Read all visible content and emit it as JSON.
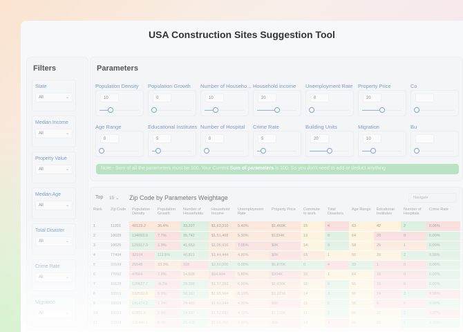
{
  "title": "USA Construction Sites Suggestion Tool",
  "filters": {
    "heading": "Filters",
    "items": [
      {
        "label": "State",
        "value": "All"
      },
      {
        "label": "Median Income",
        "value": "All"
      },
      {
        "label": "Property Value",
        "value": "All"
      },
      {
        "label": "Median Age",
        "value": "All"
      },
      {
        "label": "Total Disaster",
        "value": "All"
      },
      {
        "label": "Crime Rate",
        "value": "All"
      },
      {
        "label": "Migration",
        "value": "All"
      }
    ]
  },
  "parameters": {
    "heading": "Parameters",
    "items": [
      {
        "label": "Population Density",
        "value": "10",
        "level": 10
      },
      {
        "label": "Population Growth",
        "value": "0",
        "level": 0
      },
      {
        "label": "Number of Househo...",
        "value": "10",
        "level": 10
      },
      {
        "label": "Household income",
        "value": "20",
        "level": 20
      },
      {
        "label": "Unemployment Rate",
        "value": "0",
        "level": 0
      },
      {
        "label": "Property Price",
        "value": "20",
        "level": 20
      },
      {
        "label": "Co",
        "value": "",
        "level": 0
      },
      {
        "label": "Age Range",
        "value": "0",
        "level": 0
      },
      {
        "label": "Educational Institutes",
        "value": "5",
        "level": 5
      },
      {
        "label": "Number of Hospital",
        "value": "0",
        "level": 0
      },
      {
        "label": "Crime Rate",
        "value": "5",
        "level": 5
      },
      {
        "label": "Building Units",
        "value": "20",
        "level": 20
      },
      {
        "label": "Migration",
        "value": "10",
        "level": 10
      },
      {
        "label": "Bu",
        "value": "",
        "level": 0
      }
    ],
    "note_prefix": "Note:- Sum of all the parameters must be 100. Your Current ",
    "note_bold": "Sum of parameters",
    "note_suffix": " is 100. So you don't need to add or deduct anything"
  },
  "table": {
    "top_label": "Top",
    "top_value": "15",
    "title": "Zip Code by Parameters Weightage",
    "navigate": "Navigate",
    "columns": [
      "Rank",
      "Zip Code",
      "Population Density",
      "Population Growth",
      "Number of Households",
      "Household Income",
      "Unemployment Rate",
      "Property Price",
      "Commute to work",
      "Total Disasters",
      "Age Range",
      "Edcational Institutes",
      "Number of Hospitals",
      "Crime Rate"
    ],
    "rows": [
      [
        "1",
        "11201",
        "49123.2",
        "36.4%",
        "33,227",
        "$1,63,310",
        "5.40%",
        "$1,469K",
        "15",
        "4",
        "63",
        "42",
        "2",
        "0.06%"
      ],
      [
        "2",
        "10023",
        "134093.9",
        "7.7%",
        "35,742",
        "$1,51,468",
        "5.30%",
        "$1334K",
        "13",
        "0",
        "64",
        "20",
        "0",
        "0.00%"
      ],
      [
        "3",
        "10025",
        "129317.3",
        "2.9%",
        "41,653",
        "$1,06,916",
        "7.05%",
        "$0K",
        "14",
        "0",
        "58",
        "25",
        "1",
        "0.00%"
      ],
      [
        "4",
        "77494",
        "32104",
        "112.5%",
        "40,821",
        "$1,44,444",
        "4.80%",
        "$0K",
        "16",
        "1",
        "60",
        "39",
        "2",
        "0.00%"
      ],
      [
        "5",
        "33109",
        "25548",
        "33.3%",
        "328",
        "$2,50,000",
        "0.00%",
        "$6,875K",
        "0",
        "4",
        "33",
        "1",
        "0",
        "0.00%"
      ],
      [
        "6",
        "77092",
        "47664",
        "7.6%",
        "14,509",
        "$64,494",
        "5.80%",
        "$304K",
        "16",
        "1",
        "64",
        "15",
        "0",
        "0.00%"
      ],
      [
        "7",
        "10128",
        "120627.7",
        "-8.2%",
        "29,328",
        "$1,37,253",
        "6.00%",
        "$1,430K",
        "15",
        "0",
        "55",
        "15",
        "0",
        "0.00%"
      ],
      [
        "8",
        "10016",
        "102592.0",
        "0.9%",
        "50,167",
        "$1,65,964",
        "6.10%",
        "$1,221K",
        "14",
        "3",
        "60",
        "14",
        "3",
        "0.06%"
      ],
      [
        "9",
        "10028",
        "141474.2",
        "1.1%",
        "24,460",
        "$1,60,244",
        "4.90%",
        "$0K",
        "15",
        "0",
        "56",
        "5",
        "0",
        "0.00%"
      ],
      [
        "10",
        "10022",
        "92891.6",
        "2.9%",
        "24,597",
        "$1,52,882",
        "4.70%",
        "$1,222K",
        "11",
        "2",
        "68",
        "37",
        "2",
        "0.07%"
      ],
      [
        "11",
        "10024",
        "105444.1",
        "8.0%",
        "29,425",
        "$1,66,460",
        "4.80%",
        "$0K",
        "14",
        "4",
        "60",
        "29",
        "1",
        "0.00%"
      ]
    ],
    "cell_colors": [
      [
        "",
        "",
        "o",
        "o",
        "g",
        "o",
        "o",
        "o",
        "y",
        "r",
        "y",
        "y",
        "g",
        "r"
      ],
      [
        "",
        "",
        "g",
        "r",
        "g",
        "o",
        "o",
        "o",
        "y",
        "g",
        "y",
        "r",
        "r",
        "g"
      ],
      [
        "",
        "",
        "g",
        "r",
        "g",
        "o",
        "r",
        "r",
        "y",
        "g",
        "y",
        "o",
        "o",
        "g"
      ],
      [
        "",
        "",
        "r",
        "g",
        "g",
        "o",
        "o",
        "r",
        "o",
        "y",
        "y",
        "y",
        "g",
        "g"
      ],
      [
        "",
        "",
        "r",
        "o",
        "r",
        "g",
        "g",
        "g",
        "g",
        "r",
        "g",
        "r",
        "r",
        "g"
      ],
      [
        "",
        "",
        "r",
        "r",
        "o",
        "r",
        "o",
        "r",
        "o",
        "y",
        "y",
        "r",
        "r",
        "g"
      ],
      [
        "",
        "",
        "g",
        "r",
        "g",
        "o",
        "o",
        "o",
        "y",
        "g",
        "y",
        "r",
        "r",
        "g"
      ],
      [
        "",
        "",
        "y",
        "r",
        "g",
        "y",
        "o",
        "o",
        "y",
        "g",
        "y",
        "r",
        "g",
        "r"
      ],
      [
        "",
        "",
        "g",
        "r",
        "o",
        "o",
        "o",
        "r",
        "y",
        "g",
        "y",
        "r",
        "r",
        "g"
      ],
      [
        "",
        "",
        "y",
        "r",
        "g",
        "o",
        "o",
        "o",
        "y",
        "g",
        "y",
        "y",
        "g",
        "r"
      ],
      [
        "",
        "",
        "y",
        "r",
        "g",
        "o",
        "o",
        "r",
        "y",
        "r",
        "y",
        "y",
        "g",
        "g"
      ]
    ]
  },
  "colors": {
    "red": "#f9dcdc",
    "orange": "#fbe6d8",
    "yellow": "#fdf2da",
    "green": "#daefdf",
    "note": "#b9e2c4",
    "accent": "#7d9cc8"
  }
}
